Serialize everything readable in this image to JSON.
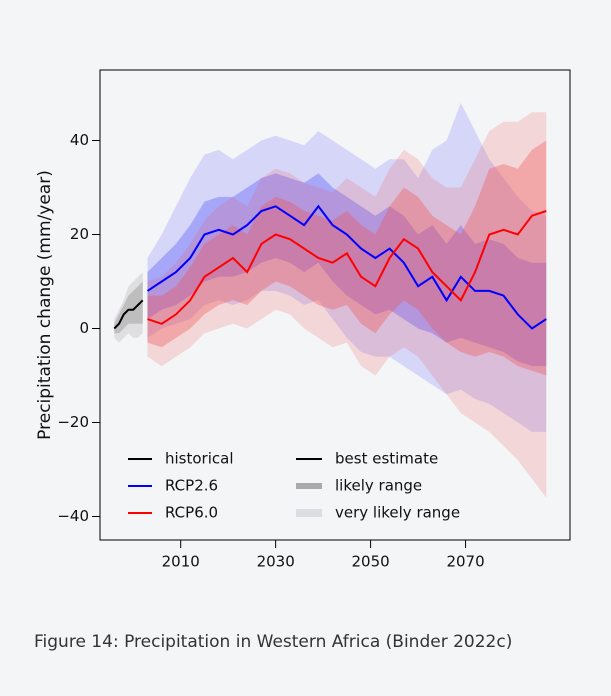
{
  "chart_data": {
    "type": "line",
    "ylabel": "Precipitation change (mm/year)",
    "caption": "Figure 14: Precipitation in Western Africa (Binder 2022c)",
    "xlim": [
      1993,
      2092
    ],
    "xticks": [
      2010,
      2030,
      2050,
      2070
    ],
    "ylim": [
      -45,
      55
    ],
    "yticks": [
      {
        "value": -40,
        "label": "−40"
      },
      {
        "value": -20,
        "label": "−20"
      },
      0,
      20,
      40
    ],
    "band_legend": [
      "best estimate",
      "likely range",
      "very likely range"
    ],
    "series": [
      {
        "name": "historical",
        "color": "#000000",
        "band_color": "#808080",
        "x": [
          1996,
          1997,
          1998,
          1999,
          2000,
          2001,
          2002
        ],
        "values": [
          0,
          1,
          3,
          4,
          4,
          5,
          6
        ],
        "likely_low": [
          -1,
          -1,
          0,
          1,
          1,
          1,
          1
        ],
        "likely_high": [
          1,
          3,
          5,
          7,
          8,
          9,
          10
        ],
        "very_likely_low": [
          -2,
          -3,
          -2,
          -1,
          -2,
          -2,
          -1
        ],
        "very_likely_high": [
          2,
          4,
          6,
          9,
          10,
          11,
          12
        ]
      },
      {
        "name": "RCP2.6",
        "color": "#0000ff",
        "band_color": "#5050ff",
        "x": [
          2003,
          2006,
          2009,
          2012,
          2015,
          2018,
          2021,
          2024,
          2027,
          2030,
          2033,
          2036,
          2039,
          2042,
          2045,
          2048,
          2051,
          2054,
          2057,
          2060,
          2063,
          2066,
          2069,
          2072,
          2075,
          2078,
          2081,
          2084,
          2087
        ],
        "values": [
          8,
          10,
          12,
          15,
          20,
          21,
          20,
          22,
          25,
          26,
          24,
          22,
          26,
          22,
          20,
          17,
          15,
          17,
          14,
          9,
          11,
          6,
          11,
          8,
          8,
          7,
          3,
          0,
          2
        ],
        "likely_low": [
          2,
          4,
          5,
          7,
          10,
          11,
          11,
          12,
          14,
          15,
          14,
          12,
          14,
          10,
          7,
          5,
          3,
          4,
          2,
          0,
          -1,
          -3,
          -2,
          -3,
          -4,
          -5,
          -7,
          -8,
          -8
        ],
        "likely_high": [
          12,
          15,
          18,
          22,
          27,
          28,
          28,
          30,
          32,
          33,
          32,
          31,
          33,
          30,
          28,
          26,
          24,
          26,
          24,
          20,
          22,
          18,
          22,
          18,
          19,
          18,
          15,
          14,
          14
        ],
        "very_likely_low": [
          -2,
          0,
          1,
          2,
          5,
          6,
          5,
          6,
          8,
          8,
          7,
          5,
          6,
          2,
          -2,
          -5,
          -6,
          -6,
          -8,
          -10,
          -12,
          -14,
          -13,
          -15,
          -16,
          -18,
          -20,
          -22,
          -22
        ],
        "very_likely_high": [
          15,
          20,
          26,
          32,
          37,
          38,
          36,
          38,
          40,
          41,
          40,
          39,
          42,
          40,
          38,
          36,
          34,
          36,
          36,
          32,
          38,
          40,
          48,
          42,
          36,
          32,
          28,
          25,
          24
        ]
      },
      {
        "name": "RCP6.0",
        "color": "#ff0000",
        "band_color": "#f05050",
        "x": [
          2003,
          2006,
          2009,
          2012,
          2015,
          2018,
          2021,
          2024,
          2027,
          2030,
          2033,
          2036,
          2039,
          2042,
          2045,
          2048,
          2051,
          2054,
          2057,
          2060,
          2063,
          2066,
          2069,
          2072,
          2075,
          2078,
          2081,
          2084,
          2087
        ],
        "values": [
          2,
          1,
          3,
          6,
          11,
          13,
          15,
          12,
          18,
          20,
          19,
          17,
          15,
          14,
          16,
          11,
          9,
          15,
          19,
          17,
          12,
          9,
          6,
          12,
          20,
          21,
          20,
          24,
          25
        ],
        "likely_low": [
          -3,
          -4,
          -2,
          0,
          3,
          5,
          6,
          5,
          8,
          10,
          9,
          7,
          5,
          4,
          5,
          1,
          -1,
          3,
          6,
          4,
          0,
          -3,
          -5,
          -6,
          -5,
          -6,
          -8,
          -9,
          -10
        ],
        "likely_high": [
          7,
          7,
          9,
          13,
          18,
          20,
          22,
          20,
          26,
          28,
          27,
          25,
          24,
          23,
          25,
          22,
          20,
          26,
          30,
          28,
          24,
          22,
          20,
          26,
          34,
          35,
          34,
          38,
          40
        ],
        "very_likely_low": [
          -6,
          -8,
          -6,
          -4,
          -1,
          0,
          1,
          0,
          2,
          4,
          3,
          0,
          -2,
          -4,
          -3,
          -8,
          -10,
          -6,
          -4,
          -6,
          -10,
          -14,
          -18,
          -20,
          -22,
          -25,
          -28,
          -32,
          -36
        ],
        "very_likely_high": [
          10,
          11,
          14,
          18,
          23,
          26,
          28,
          26,
          32,
          34,
          33,
          31,
          30,
          29,
          32,
          30,
          28,
          34,
          38,
          36,
          32,
          30,
          30,
          36,
          42,
          44,
          44,
          46,
          46
        ]
      }
    ]
  }
}
